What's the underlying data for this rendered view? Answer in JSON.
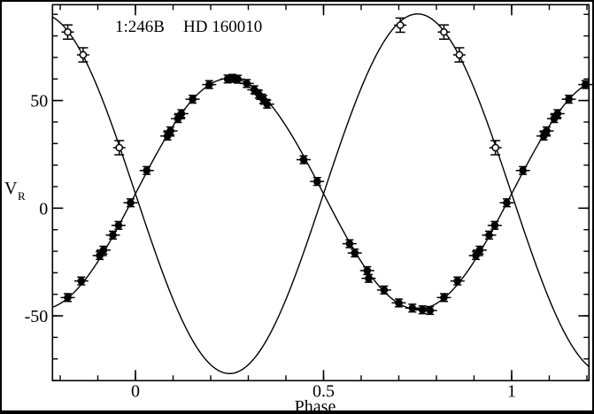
{
  "figure": {
    "bg_color": "#ffffff",
    "frame_color": "#000000",
    "data_color": "#000000"
  },
  "chart_data": {
    "type": "line",
    "title": "1:246B HD 160010",
    "title_parts": {
      "system_id": "1:246B",
      "star_name": "HD 160010"
    },
    "xlabel": "Phase",
    "ylabel_main": "V",
    "ylabel_sub": "R",
    "xlim": [
      -0.2205,
      1.2055
    ],
    "ylim": [
      -80.1,
      94.5
    ],
    "x_major_ticks": [
      0,
      0.5,
      1
    ],
    "x_major_labels": [
      "0",
      "0.5",
      "1"
    ],
    "x_minor_step": 0.1,
    "y_major_ticks": [
      -50,
      0,
      50
    ],
    "y_major_labels": [
      "-50",
      "0",
      "50"
    ],
    "y_minor_step": 10,
    "grid": false,
    "legend": false,
    "model_curves": {
      "gamma": 6.7,
      "k_primary": 53.6,
      "k_secondary": 83.5,
      "note": "primary: v=gamma+k_primary*sin(2*pi*phase); secondary: v=gamma-k_secondary*sin(2*pi*phase)"
    },
    "series": [
      {
        "name": "primary-filled-circles",
        "marker": "filled-circle",
        "v_err": 1.8,
        "points": [
          [
            -0.18,
            -41.5
          ],
          [
            -0.144,
            -33.8
          ],
          [
            -0.095,
            -22.0
          ],
          [
            -0.085,
            -19.5
          ],
          [
            -0.06,
            -12.5
          ],
          [
            -0.045,
            -8.0
          ],
          [
            -0.013,
            2.5
          ],
          [
            0.03,
            17.5
          ],
          [
            0.085,
            33.5
          ],
          [
            0.093,
            35.9
          ],
          [
            0.113,
            41.6
          ],
          [
            0.122,
            43.9
          ],
          [
            0.152,
            50.6
          ],
          [
            0.196,
            57.4
          ],
          [
            0.245,
            60.0
          ],
          [
            0.258,
            60.3
          ],
          [
            0.272,
            59.9
          ],
          [
            0.296,
            57.9
          ],
          [
            0.316,
            55.0
          ],
          [
            0.328,
            52.9
          ],
          [
            0.34,
            50.5
          ],
          [
            0.35,
            48.3
          ],
          [
            0.447,
            22.5
          ],
          [
            0.483,
            12.4
          ],
          [
            0.569,
            -16.5
          ],
          [
            0.583,
            -20.8
          ],
          [
            0.616,
            -29.0
          ],
          [
            0.62,
            -32.6
          ],
          [
            0.661,
            -38.0
          ],
          [
            0.7,
            -44.0
          ],
          [
            0.736,
            -46.4
          ],
          [
            0.763,
            -47.2
          ],
          [
            0.783,
            -47.5
          ],
          [
            0.82,
            -41.5
          ],
          [
            0.856,
            -33.8
          ],
          [
            0.905,
            -22.0
          ],
          [
            0.915,
            -19.5
          ],
          [
            0.94,
            -12.5
          ],
          [
            0.955,
            -8.0
          ],
          [
            0.987,
            2.5
          ],
          [
            1.03,
            17.5
          ],
          [
            1.085,
            33.5
          ],
          [
            1.093,
            35.9
          ],
          [
            1.113,
            41.6
          ],
          [
            1.122,
            43.9
          ],
          [
            1.152,
            50.6
          ],
          [
            1.196,
            57.4
          ]
        ]
      },
      {
        "name": "secondary-open-circles",
        "marker": "open-circle",
        "v_err": 3.3,
        "points": [
          [
            -0.18,
            81.8
          ],
          [
            -0.139,
            71.2
          ],
          [
            -0.043,
            28.1
          ],
          [
            0.704,
            85.0
          ],
          [
            0.82,
            81.8
          ],
          [
            0.861,
            71.2
          ],
          [
            0.957,
            28.1
          ]
        ]
      }
    ]
  }
}
